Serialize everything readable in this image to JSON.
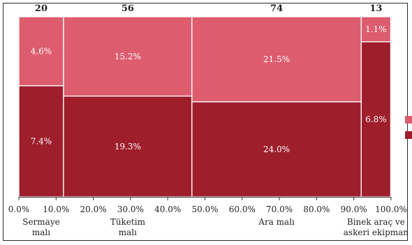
{
  "chart_data": {
    "type": "marimekko",
    "columns": [
      {
        "total": "20",
        "width_pct": 12.0,
        "segments": [
          {
            "series": "top",
            "value": 4.6,
            "label": "4.6%"
          },
          {
            "series": "bottom",
            "value": 7.4,
            "label": "7.4%"
          }
        ],
        "category_lines": [
          "Sermaye",
          "malı"
        ]
      },
      {
        "total": "56",
        "width_pct": 34.5,
        "segments": [
          {
            "series": "top",
            "value": 15.2,
            "label": "15.2%"
          },
          {
            "series": "bottom",
            "value": 19.3,
            "label": "19.3%"
          }
        ],
        "category_lines": [
          "Tüketim",
          "malı"
        ]
      },
      {
        "total": "74",
        "width_pct": 45.5,
        "segments": [
          {
            "series": "top",
            "value": 21.5,
            "label": "21.5%"
          },
          {
            "series": "bottom",
            "value": 24.0,
            "label": "24.0%"
          }
        ],
        "category_lines": [
          "Ara malı"
        ]
      },
      {
        "total": "13",
        "width_pct": 7.9,
        "segments": [
          {
            "series": "top",
            "value": 1.1,
            "label": "1.1%"
          },
          {
            "series": "bottom",
            "value": 6.8,
            "label": "6.8%"
          }
        ],
        "category_lines": [
          "Binek araç ve",
          "askeri ekipman"
        ]
      }
    ],
    "x_ticks": [
      "0.0%",
      "10.0%",
      "20.0%",
      "30.0%",
      "40.0%",
      "50.0%",
      "60.0%",
      "70.0%",
      "80.0%",
      "90.0%",
      "100.0%"
    ],
    "xlim": [
      0,
      100
    ],
    "colors": {
      "top": "#dd5d6e",
      "bottom": "#9e1e2c"
    },
    "legend_position": "right",
    "legend_labels": [
      "",
      ""
    ]
  }
}
